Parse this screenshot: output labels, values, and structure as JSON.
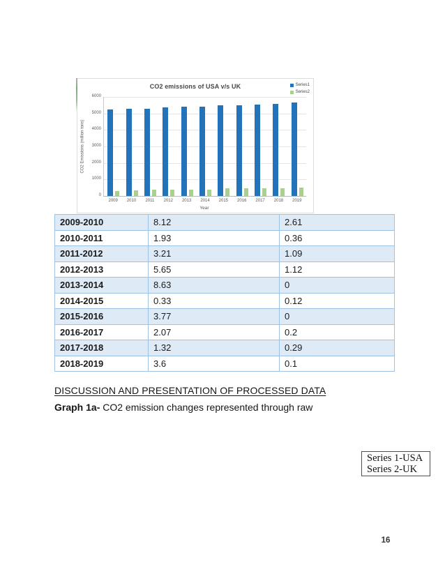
{
  "page": {
    "number": "16"
  },
  "chart_data": {
    "type": "bar",
    "title": "CO2 emissions of USA v/s UK",
    "xlabel": "Year",
    "ylabel": "CO2 Emissions (million tons)",
    "categories": [
      "2009",
      "2010",
      "2011",
      "2012",
      "2013",
      "2014",
      "2015",
      "2016",
      "2017",
      "2018",
      "2019"
    ],
    "series": [
      {
        "name": "Series1",
        "color": "#2273B9",
        "values": [
          5250,
          5280,
          5280,
          5350,
          5400,
          5400,
          5480,
          5500,
          5540,
          5590,
          5660
        ]
      },
      {
        "name": "Series2",
        "color": "#A9D08E",
        "values": [
          310,
          330,
          360,
          360,
          400,
          400,
          450,
          450,
          455,
          470,
          500
        ]
      }
    ],
    "ylim": [
      0,
      6000
    ],
    "ytick_step": 1000,
    "grid": true,
    "legend_position": "top-right"
  },
  "table": {
    "row_shade": "#DEEAF6",
    "border_color": "#9CC3E5",
    "rows": [
      {
        "period": "2009-2010",
        "usa": "8.12",
        "uk": "2.61"
      },
      {
        "period": "2010-2011",
        "usa": "1.93",
        "uk": "0.36"
      },
      {
        "period": "2011-2012",
        "usa": "3.21",
        "uk": "1.09"
      },
      {
        "period": "2012-2013",
        "usa": "5.65",
        "uk": "1.12"
      },
      {
        "period": "2013-2014",
        "usa": "8.63",
        "uk": "0"
      },
      {
        "period": "2014-2015",
        "usa": "0.33",
        "uk": "0.12"
      },
      {
        "period": "2015-2016",
        "usa": "3.77",
        "uk": "0"
      },
      {
        "period": "2016-2017",
        "usa": "2.07",
        "uk": "0.2"
      },
      {
        "period": "2017-2018",
        "usa": "1.32",
        "uk": "0.29"
      },
      {
        "period": "2018-2019",
        "usa": "3.6",
        "uk": "0.1"
      }
    ]
  },
  "discussion_heading": "DISCUSSION AND PRESENTATION OF PROCESSED DATA",
  "caption": {
    "bold": "Graph 1a-",
    "text": " CO2 emission changes represented through raw"
  },
  "legend_box": {
    "line1": "Series 1-USA",
    "line2": "Series 2-UK"
  }
}
